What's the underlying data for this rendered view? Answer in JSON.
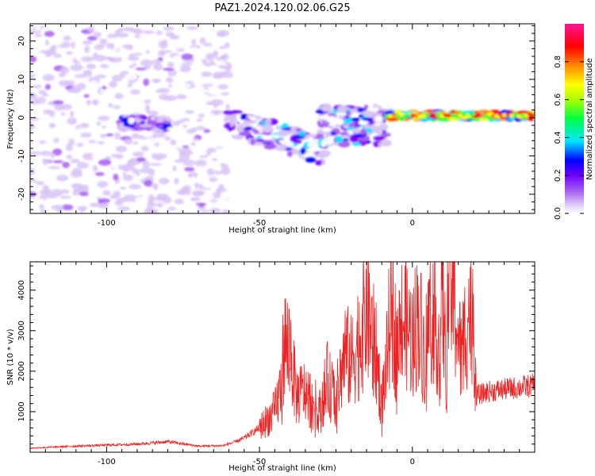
{
  "title": "PAZ1.2024.120.02.06.G25",
  "colors": {
    "snr_line": "#ee2222",
    "axes": "#000000",
    "colormap": [
      "#ffffff",
      "#d8c4f6",
      "#a45ef0",
      "#7a00ff",
      "#0000ff",
      "#00e5ff",
      "#00ff44",
      "#ffff00",
      "#ff8800",
      "#ff0000",
      "#ff1493"
    ]
  },
  "chart_data": [
    {
      "type": "heatmap",
      "title": "",
      "xlabel": "Height of straight line (km)",
      "ylabel": "Frequency (Hz)",
      "xlim": [
        -125,
        40
      ],
      "ylim": [
        -25,
        24.5
      ],
      "xticks": [
        -100,
        -50,
        0
      ],
      "xtick_labels": [
        "-100",
        "-50",
        "0"
      ],
      "yticks": [
        -20,
        -10,
        0,
        10,
        20
      ],
      "ytick_labels": [
        "-20",
        "-10",
        "0",
        "10",
        "20"
      ],
      "grid": false,
      "colorbar": {
        "label": "Normalized spectral amplitude",
        "range": [
          0,
          1
        ],
        "ticks": [
          0.0,
          0.2,
          0.4,
          0.6,
          0.8
        ],
        "tick_labels": [
          "0.0",
          "0.2",
          "0.4",
          "0.6",
          "0.8"
        ]
      },
      "features": [
        {
          "x": [
            -125,
            -60
          ],
          "y": [
            -25,
            24
          ],
          "amplitude": 0.05,
          "pattern": "scattered weak blobs"
        },
        {
          "x": [
            -95,
            -80
          ],
          "y": [
            -3,
            0
          ],
          "amplitude": 0.25
        },
        {
          "x": [
            -60,
            -28
          ],
          "y": [
            -13,
            3
          ],
          "amplitude": 0.3
        },
        {
          "x": [
            -30,
            -8
          ],
          "y": [
            -8,
            5
          ],
          "amplitude": 0.3
        },
        {
          "x": [
            -8,
            40
          ],
          "y": [
            -0.5,
            1.5
          ],
          "amplitude": 0.95,
          "pattern": "narrow continuous band"
        }
      ]
    },
    {
      "type": "line",
      "title": "",
      "xlabel": "Height of straight line (km)",
      "ylabel": "SNR (10 * v/v)",
      "xlim": [
        -125,
        40
      ],
      "ylim": [
        0,
        4700
      ],
      "xticks": [
        -100,
        -50,
        0
      ],
      "xtick_labels": [
        "-100",
        "-50",
        "0"
      ],
      "yticks": [
        1000,
        2000,
        3000,
        4000
      ],
      "ytick_labels": [
        "1000",
        "2000",
        "3000",
        "4000"
      ],
      "grid": false,
      "series": [
        {
          "x": [
            -125,
            -110,
            -90,
            -80,
            -70,
            -62,
            -58,
            -55,
            -50,
            -45,
            -43,
            -42,
            -40,
            -38,
            -35,
            -32,
            -30,
            -28,
            -25,
            -22,
            -20,
            -18,
            -16,
            -15,
            -13,
            -12,
            -10,
            -8,
            -7,
            -6,
            -5,
            -3,
            0,
            2,
            4,
            6,
            8,
            9,
            10,
            11,
            12,
            14,
            16,
            18,
            20,
            20.5,
            21,
            25,
            30,
            35,
            40
          ],
          "y": [
            100,
            150,
            200,
            260,
            150,
            160,
            250,
            350,
            600,
            1000,
            1600,
            2700,
            2600,
            1400,
            1500,
            1200,
            1000,
            1800,
            1300,
            2500,
            2200,
            2700,
            3200,
            3600,
            2800,
            2500,
            1200,
            2500,
            4100,
            3000,
            2700,
            3300,
            2800,
            3400,
            2400,
            3600,
            3100,
            2600,
            3700,
            2100,
            4600,
            3500,
            2300,
            3400,
            3600,
            1800,
            1400,
            1500,
            1550,
            1600,
            1650
          ]
        }
      ]
    }
  ]
}
